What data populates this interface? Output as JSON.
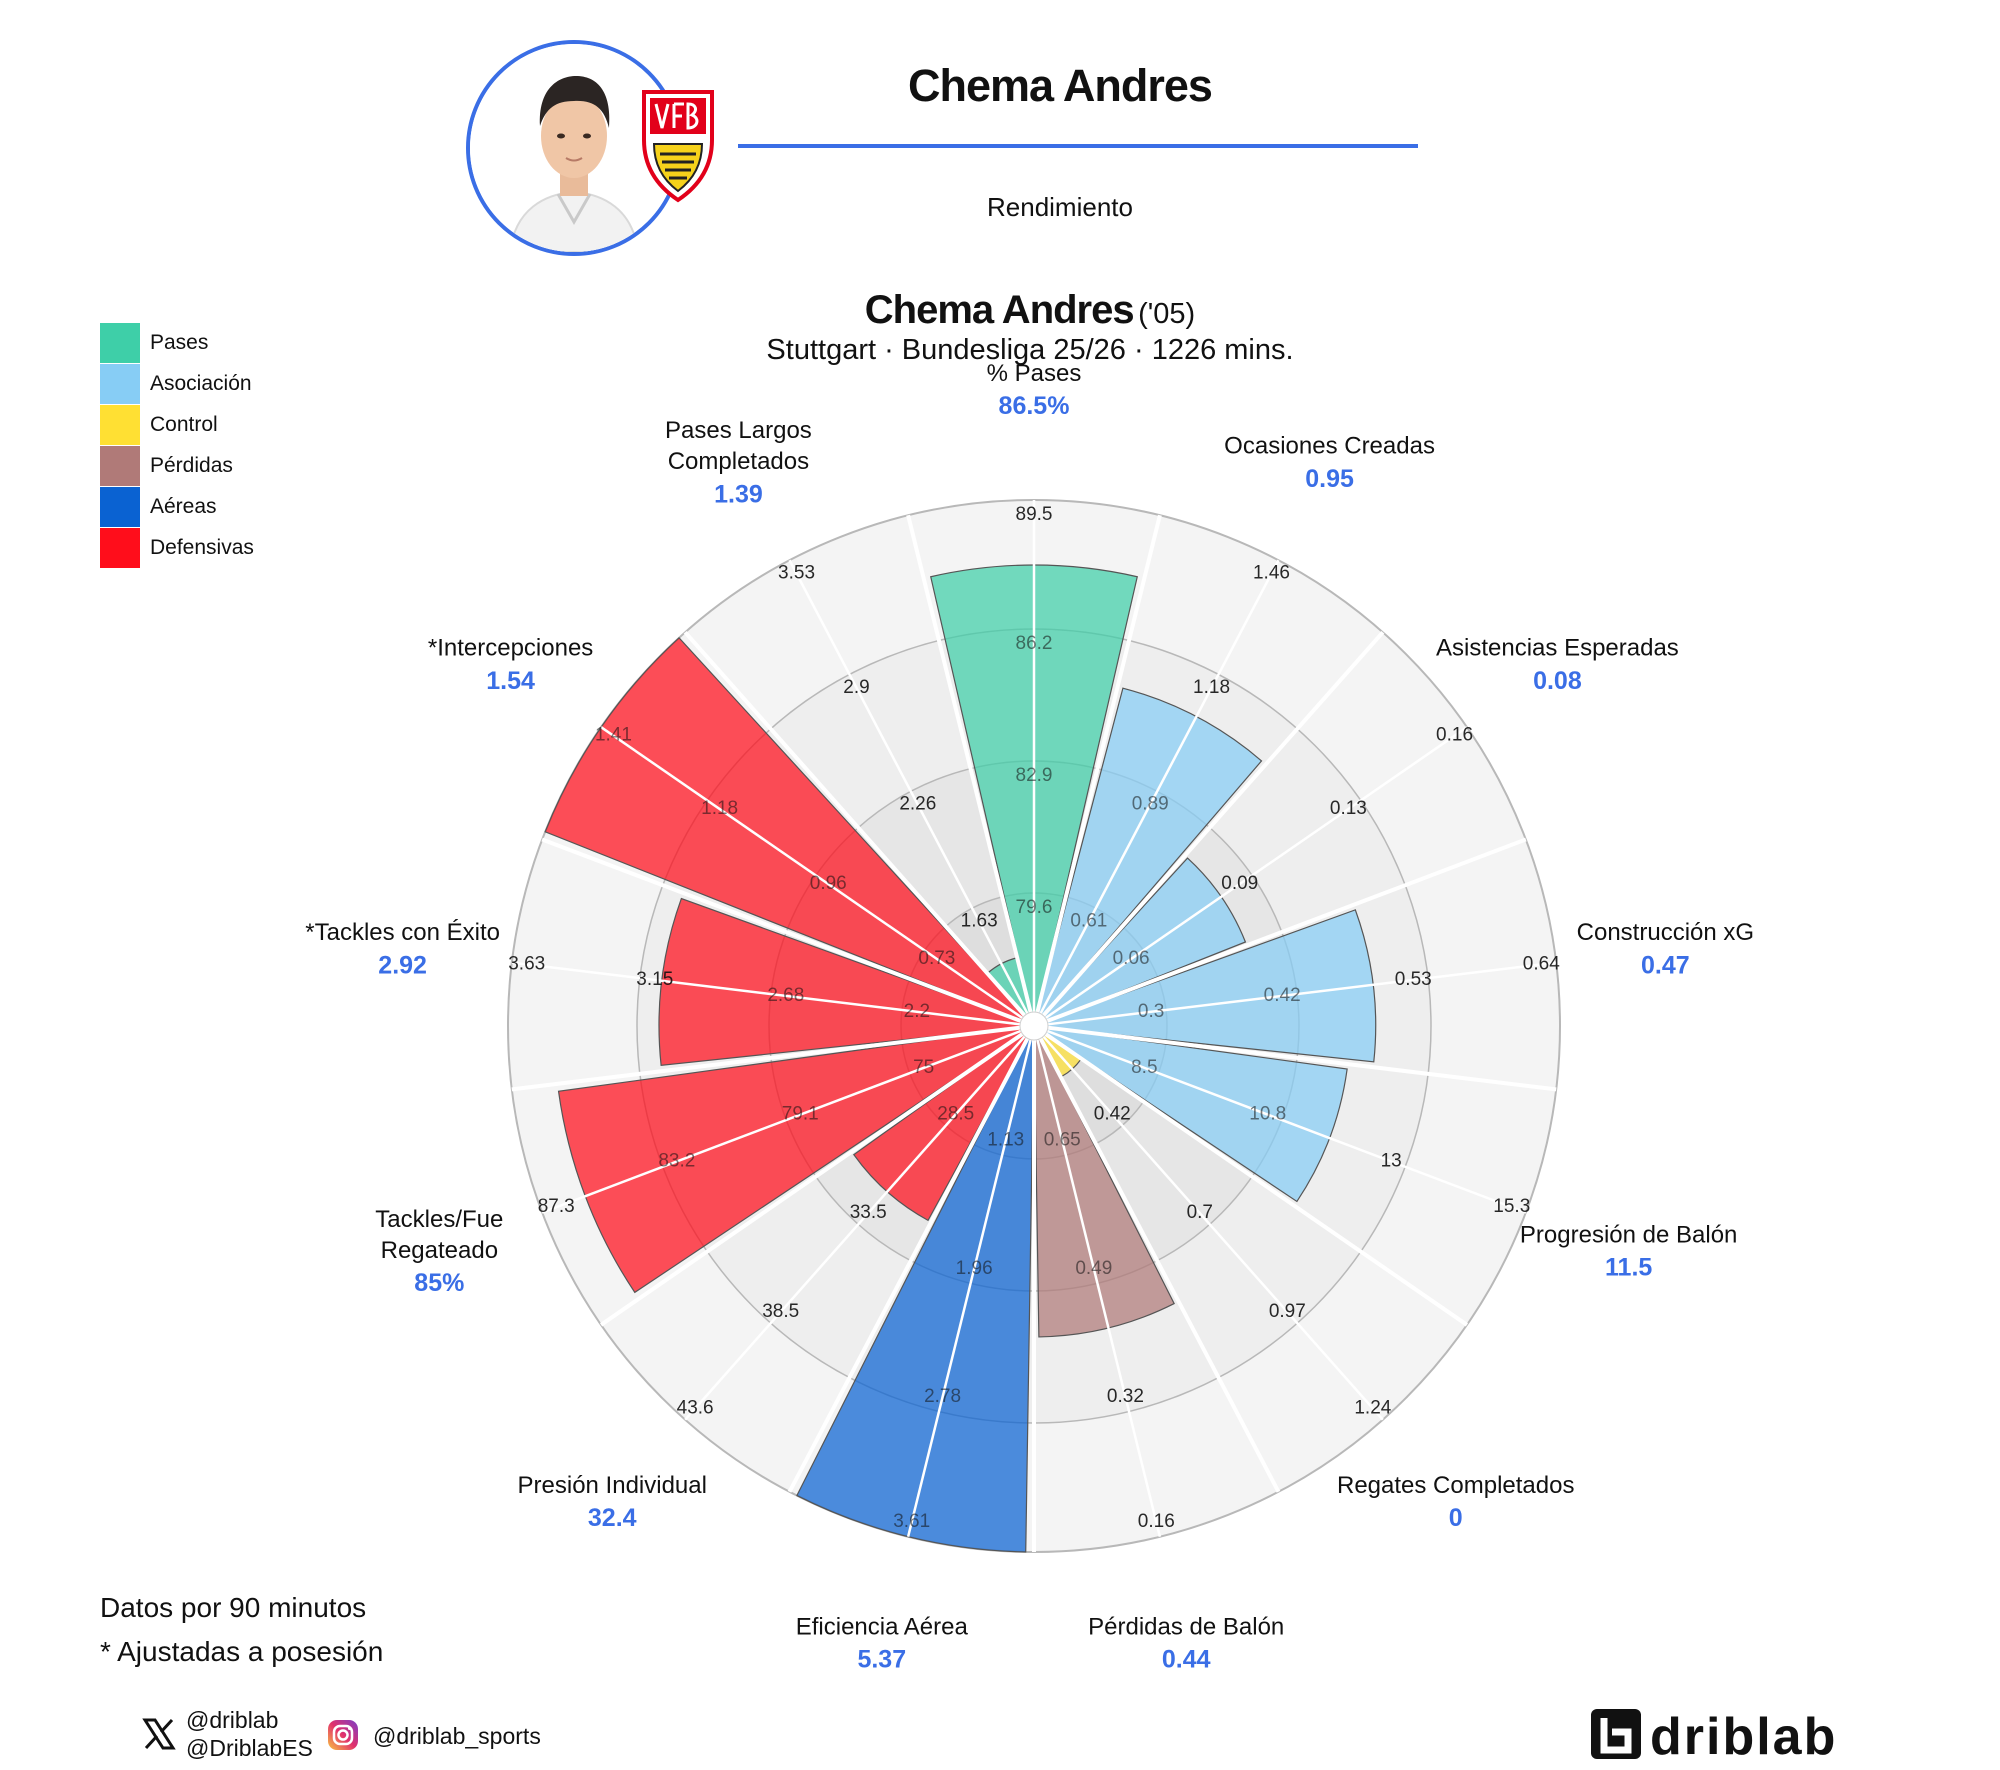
{
  "header": {
    "player_name": "Chema Andres",
    "subtitle": "Rendimiento"
  },
  "title": {
    "name": "Chema Andres",
    "year": "('05)",
    "context": "Stuttgart · Bundesliga 25/26 · 1226 mins."
  },
  "legend": [
    {
      "label": "Pases",
      "color": "#3ecfa8"
    },
    {
      "label": "Asociación",
      "color": "#87cdf5"
    },
    {
      "label": "Control",
      "color": "#ffe033"
    },
    {
      "label": "Pérdidas",
      "color": "#b07a78"
    },
    {
      "label": "Aéreas",
      "color": "#0a62d2"
    },
    {
      "label": "Defensivas",
      "color": "#ff0d1b"
    }
  ],
  "chart_data": {
    "type": "radar-bar",
    "categories": [
      {
        "name": "% Pases",
        "value": "86.5%",
        "group": "Pases",
        "fraction": 0.873,
        "ticks": [
          "79.6",
          "82.9",
          "86.2",
          "89.5"
        ],
        "label_lines": [
          "% Pases"
        ]
      },
      {
        "name": "Ocasiones Creadas",
        "value": "0.95",
        "group": "Asociación",
        "fraction": 0.655,
        "ticks": [
          "0.61",
          "0.89",
          "1.18",
          "1.46"
        ],
        "label_lines": [
          "Ocasiones Creadas"
        ]
      },
      {
        "name": "Asistencias Esperadas",
        "value": "0.08",
        "group": "Asociación",
        "fraction": 0.417,
        "ticks": [
          "0.06",
          "0.09",
          "0.13",
          "0.16"
        ],
        "label_lines": [
          "Asistencias Esperadas"
        ]
      },
      {
        "name": "Construcción xG",
        "value": "0.47",
        "group": "Asociación",
        "fraction": 0.64,
        "ticks": [
          "0.3",
          "0.42",
          "0.53",
          "0.64"
        ],
        "label_lines": [
          "Construcción xG"
        ]
      },
      {
        "name": "Progresión de Balón",
        "value": "11.5",
        "group": "Asociación",
        "fraction": 0.59,
        "ticks": [
          "8.5",
          "10.8",
          "13",
          "15.3"
        ],
        "label_lines": [
          "Progresión de Balón"
        ]
      },
      {
        "name": "Regates Completados",
        "value": "0",
        "group": "Control",
        "fraction": 0.085,
        "ticks": [
          "0.42",
          "0.7",
          "0.97",
          "1.24"
        ],
        "label_lines": [
          "Regates Completados"
        ]
      },
      {
        "name": "Pérdidas de Balón",
        "value": "0.44",
        "group": "Pérdidas",
        "fraction": 0.58,
        "ticks": [
          "0.65",
          "0.49",
          "0.32",
          "0.16"
        ],
        "label_lines": [
          "Pérdidas de Balón"
        ]
      },
      {
        "name": "Eficiencia Aérea",
        "value": "5.37",
        "group": "Aéreas",
        "fraction": 1.0,
        "ticks": [
          "1.13",
          "1.96",
          "2.78",
          "3.61"
        ],
        "label_lines": [
          "Eficiencia Aérea"
        ]
      },
      {
        "name": "Presión Individual",
        "value": "32.4",
        "group": "Defensivas",
        "fraction": 0.405,
        "ticks": [
          "28.5",
          "33.5",
          "38.5",
          "43.6"
        ],
        "label_lines": [
          "Presión Individual"
        ]
      },
      {
        "name": "Tackles/Fue Regateado",
        "value": "85%",
        "group": "Defensivas",
        "fraction": 0.91,
        "ticks": [
          "75",
          "79.1",
          "83.2",
          "87.3"
        ],
        "label_lines": [
          "Tackles/Fue",
          "Regateado"
        ]
      },
      {
        "name": "*Tackles con Éxito",
        "value": "2.92",
        "group": "Defensivas",
        "fraction": 0.705,
        "ticks": [
          "2.2",
          "2.68",
          "3.15",
          "3.63"
        ],
        "label_lines": [
          "*Tackles con Éxito"
        ]
      },
      {
        "name": "*Intercepciones",
        "value": "1.54",
        "group": "Defensivas",
        "fraction": 1.0,
        "ticks": [
          "0.73",
          "0.96",
          "1.18",
          "1.41"
        ],
        "label_lines": [
          "*Intercepciones"
        ]
      },
      {
        "name": "Pases Largos Completados",
        "value": "1.39",
        "group": "Pases",
        "fraction": 0.11,
        "ticks": [
          "1.63",
          "2.26",
          "2.9",
          "3.53"
        ],
        "label_lines": [
          "Pases Largos",
          "Completados"
        ]
      }
    ]
  },
  "footer": {
    "note1": "Datos por 90 minutos",
    "note2": "* Ajustadas a posesión",
    "x_handle1": "@driblab",
    "x_handle2": "@DriblabES",
    "instagram_handle": "@driblab_sports",
    "brand": "driblab"
  },
  "icons": {
    "x": "x-logo-icon",
    "instagram": "instagram-icon",
    "club": "vfb-stuttgart-crest"
  }
}
